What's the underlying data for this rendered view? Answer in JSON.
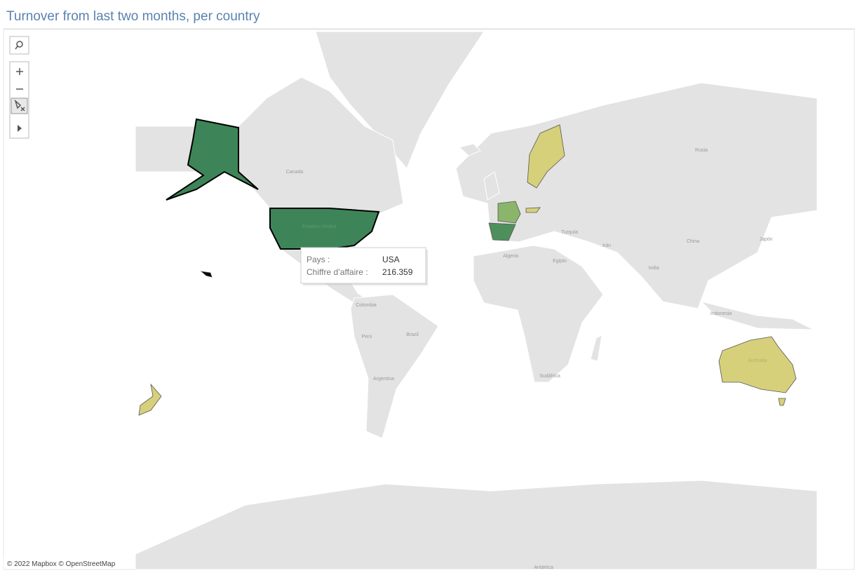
{
  "title": "Turnover from last two months, per country",
  "map": {
    "labels": [
      "Canada",
      "Estados Unidos",
      "Rusia",
      "Turquía",
      "Irán",
      "China",
      "Japón",
      "Algeria",
      "Egipto",
      "India",
      "Indonesia",
      "Colombia",
      "Perú",
      "Brazil",
      "Argentina",
      "Australia",
      "Sudáfrica",
      "Antártica"
    ]
  },
  "tooltip": {
    "country_label": "Pays :",
    "country": "USA",
    "value_label": "Chiffre d’affaire :",
    "value": "216.359"
  },
  "attribution": "© 2022 Mapbox © OpenStreetMap"
}
